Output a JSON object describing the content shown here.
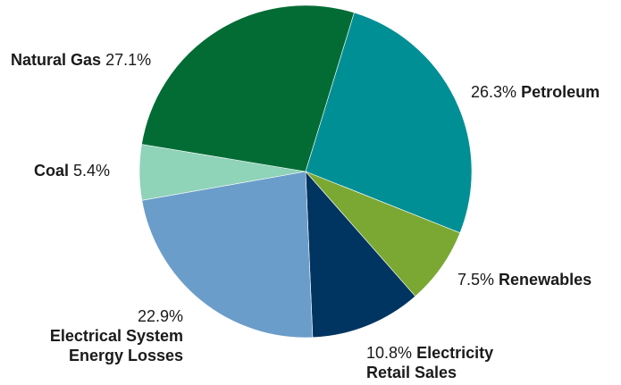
{
  "chart_data": {
    "type": "pie",
    "slices": [
      {
        "name": "Petroleum",
        "value": 26.3,
        "label": "26.3%",
        "color": "#008f95"
      },
      {
        "name": "Renewables",
        "value": 7.5,
        "label": "7.5%",
        "color": "#7aa833"
      },
      {
        "name": "Electricity Retail Sales",
        "name_line1": "Electricity",
        "name_line2": "Retail Sales",
        "value": 10.8,
        "label": "10.8%",
        "color": "#003461"
      },
      {
        "name": "Electrical System Energy Losses",
        "name_line1": "Electrical System",
        "name_line2": "Energy Losses",
        "value": 22.9,
        "label": "22.9%",
        "color": "#6b9dca"
      },
      {
        "name": "Coal",
        "value": 5.4,
        "label": "5.4%",
        "color": "#8fd3b9"
      },
      {
        "name": "Natural Gas",
        "value": 27.1,
        "label": "27.1%",
        "color": "#036c35"
      }
    ]
  }
}
